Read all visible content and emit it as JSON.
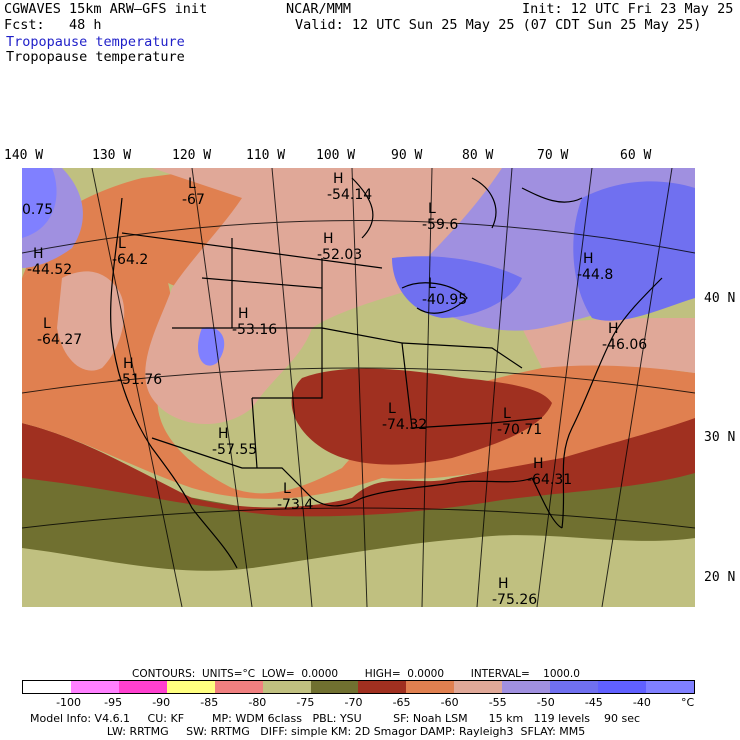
{
  "header": {
    "left_line1": "CGWAVES 15km ARW–GFS init",
    "left_line2": "Fcst:   48 h",
    "field_title": "Tropopause temperature",
    "field_subtitle": "Tropopause temperature",
    "center": "NCAR/MMM",
    "init": "Init: 12 UTC Fri 23 May 25",
    "valid": "Valid: 12 UTC Sun 25 May 25 (07 CDT Sun 25 May 25)"
  },
  "axes": {
    "lon_labels": [
      "140 W",
      "130 W",
      "120 W",
      "110 W",
      "100 W",
      "90 W",
      "80 W",
      "70 W",
      "60 W"
    ],
    "lat_labels": [
      "40 N",
      "30 N",
      "20 N"
    ]
  },
  "map_labels": [
    {
      "letter": "L",
      "value": "-67"
    },
    {
      "letter": "H",
      "value": "-54.14"
    },
    {
      "letter": "L",
      "value": "-59.6"
    },
    {
      "letter": "H",
      "value": "-52.03"
    },
    {
      "letter": "H",
      "value": "-44.52"
    },
    {
      "letter": "L",
      "value": "-64.2"
    },
    {
      "letter": "H",
      "value": "-53.16"
    },
    {
      "letter": "L",
      "value": "-64.27"
    },
    {
      "letter": "H",
      "value": "-51.76"
    },
    {
      "letter": "L",
      "value": "-40.95"
    },
    {
      "letter": "H",
      "value": "-44.8"
    },
    {
      "letter": "H",
      "value": "-46.06"
    },
    {
      "letter": "L",
      "value": "-74.32"
    },
    {
      "letter": "L",
      "value": "-70.71"
    },
    {
      "letter": "H",
      "value": "-57.55"
    },
    {
      "letter": "L",
      "value": "-73.4"
    },
    {
      "letter": "H",
      "value": "-64.31"
    },
    {
      "letter": "H",
      "value": "-75.26"
    },
    {
      "letter": "",
      "value": "0.75"
    }
  ],
  "contours_line": "CONTOURS:  UNITS=°C  LOW=  0.0000        HIGH=  0.0000        INTERVAL=    1000.0",
  "colorbar": {
    "labels": [
      "-100",
      "-95",
      "-90",
      "-85",
      "-80",
      "-75",
      "-70",
      "-65",
      "-60",
      "-55",
      "-50",
      "-45",
      "-40",
      "°C"
    ],
    "colors": [
      "#ffffff",
      "#ff80ff",
      "#ff40d0",
      "#ffff80",
      "#f08080",
      "#c0c080",
      "#707030",
      "#a03020",
      "#e08050",
      "#e0a898",
      "#a090e0",
      "#7070f0",
      "#6060ff",
      "#8080ff"
    ]
  },
  "footer": {
    "line1": "Model Info: V4.6.1     CU: KF        MP: WDM 6class   PBL: YSU         SF: Noah LSM      15 km   119 levels    90 sec",
    "line2": "                      LW: RRTMG     SW: RRTMG   DIFF: simple KM: 2D Smagor DAMP: Rayleigh3  SFLAY: MM5"
  }
}
